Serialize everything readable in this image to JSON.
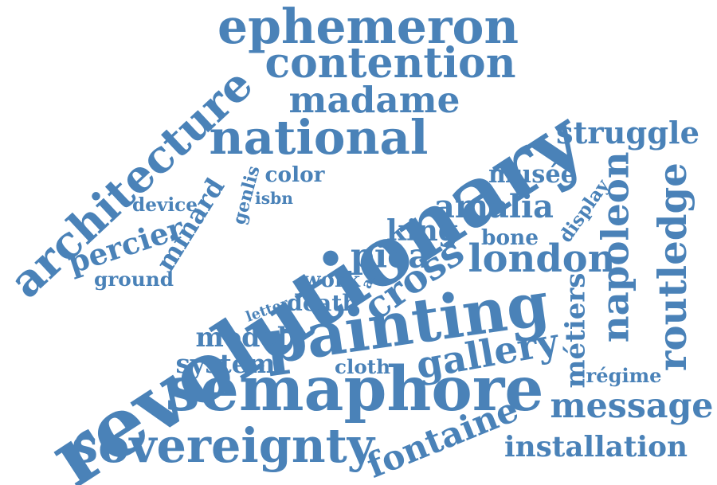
{
  "palette": {
    "word_color": "#4a82b8",
    "background": "#ffffff"
  },
  "words": [
    {
      "id": "revolutionary",
      "text": "revolutionary"
    },
    {
      "id": "painting",
      "text": "painting"
    },
    {
      "id": "semaphore",
      "text": "semaphore"
    },
    {
      "id": "sovereignty",
      "text": "sovereignty"
    },
    {
      "id": "ephemeron",
      "text": "ephemeron"
    },
    {
      "id": "contention",
      "text": "contention"
    },
    {
      "id": "architecture",
      "text": "architecture"
    },
    {
      "id": "national",
      "text": "national"
    },
    {
      "id": "madame",
      "text": "madame"
    },
    {
      "id": "struggle",
      "text": "struggle"
    },
    {
      "id": "routledge",
      "text": "routledge"
    },
    {
      "id": "napoleon",
      "text": "napoleon"
    },
    {
      "id": "london",
      "text": "london"
    },
    {
      "id": "amalia",
      "text": "amalia"
    },
    {
      "id": "cross",
      "text": "cross"
    },
    {
      "id": "gallery",
      "text": "gallery"
    },
    {
      "id": "message",
      "text": "message"
    },
    {
      "id": "installation",
      "text": "installation"
    },
    {
      "id": "fontaine",
      "text": "fontaine"
    },
    {
      "id": "pica",
      "text": "pica"
    },
    {
      "id": "king",
      "text": "king"
    },
    {
      "id": "musee",
      "text": "musée"
    },
    {
      "id": "metiers",
      "text": "métiers"
    },
    {
      "id": "percier",
      "text": "percier"
    },
    {
      "id": "minard",
      "text": "minard"
    },
    {
      "id": "system",
      "text": "system"
    },
    {
      "id": "model",
      "text": "model"
    },
    {
      "id": "death",
      "text": "death"
    },
    {
      "id": "cloth",
      "text": "cloth"
    },
    {
      "id": "color",
      "text": "color"
    },
    {
      "id": "bone",
      "text": "bone"
    },
    {
      "id": "display",
      "text": "display"
    },
    {
      "id": "regime",
      "text": "régime"
    },
    {
      "id": "genlis",
      "text": "genlis"
    },
    {
      "id": "device",
      "text": "device"
    },
    {
      "id": "isbn",
      "text": "isbn"
    },
    {
      "id": "ground",
      "text": "ground"
    },
    {
      "id": "work",
      "text": "work"
    },
    {
      "id": "art",
      "text": "art"
    },
    {
      "id": "letter",
      "text": "letter"
    }
  ]
}
